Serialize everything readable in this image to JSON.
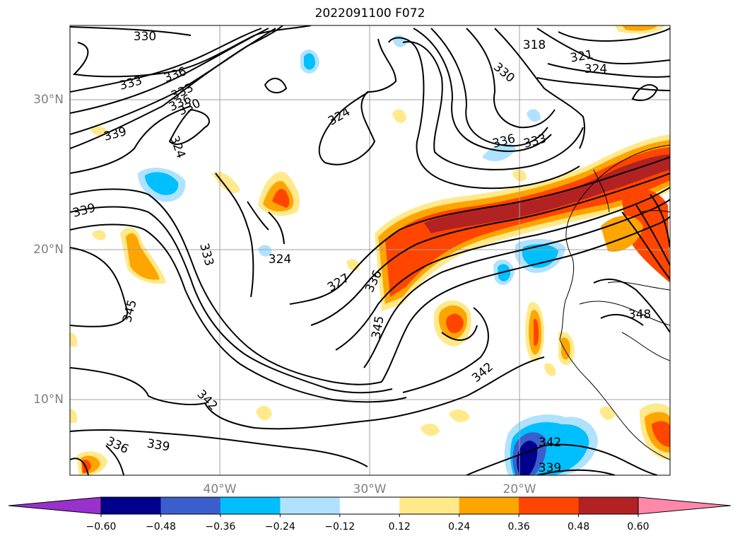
{
  "title": "2022091100 F072",
  "lat_labels": [
    "30°N",
    "20°N",
    "10°N"
  ],
  "lon_labels": [
    "40°W",
    "30°W",
    "20°W"
  ],
  "colorbar": {
    "ticks": [
      "−0.60",
      "−0.48",
      "−0.36",
      "−0.24",
      "−0.12",
      "0.12",
      "0.24",
      "0.36",
      "0.48",
      "0.60"
    ],
    "colors": [
      "#9932cc",
      "#00008b",
      "#3a5fcd",
      "#00bfff",
      "#b0e2ff",
      "#ffffff",
      "#ffe98a",
      "#ffa500",
      "#ff4500",
      "#b22222",
      "#ff88aa"
    ]
  },
  "contour_labels": [
    {
      "text": "330",
      "name": "contour-label-330"
    },
    {
      "text": "333",
      "name": "contour-label-333"
    },
    {
      "text": "336",
      "name": "contour-label-336"
    },
    {
      "text": "336",
      "name": "contour-label-336"
    },
    {
      "text": "333",
      "name": "contour-label-333"
    },
    {
      "text": "330",
      "name": "contour-label-330"
    },
    {
      "text": "339",
      "name": "contour-label-339"
    },
    {
      "text": "324",
      "name": "contour-label-324"
    },
    {
      "text": "324",
      "name": "contour-label-324"
    },
    {
      "text": "318",
      "name": "contour-label-318"
    },
    {
      "text": "321",
      "name": "contour-label-321"
    },
    {
      "text": "324",
      "name": "contour-label-324"
    },
    {
      "text": "330",
      "name": "contour-label-330"
    },
    {
      "text": "336",
      "name": "contour-label-336"
    },
    {
      "text": "333",
      "name": "contour-label-333"
    },
    {
      "text": "339",
      "name": "contour-label-339"
    },
    {
      "text": "333",
      "name": "contour-label-333"
    },
    {
      "text": "324",
      "name": "contour-label-324"
    },
    {
      "text": "327",
      "name": "contour-label-327"
    },
    {
      "text": "336",
      "name": "contour-label-336"
    },
    {
      "text": "345",
      "name": "contour-label-345"
    },
    {
      "text": "345",
      "name": "contour-label-345"
    },
    {
      "text": "348",
      "name": "contour-label-348"
    },
    {
      "text": "342",
      "name": "contour-label-342"
    },
    {
      "text": "342",
      "name": "contour-label-342"
    },
    {
      "text": "336",
      "name": "contour-label-336"
    },
    {
      "text": "339",
      "name": "contour-label-339"
    },
    {
      "text": "342",
      "name": "contour-label-342"
    },
    {
      "text": "339",
      "name": "contour-label-339"
    }
  ]
}
